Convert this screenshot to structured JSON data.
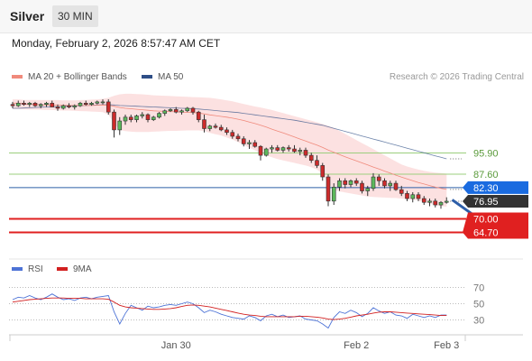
{
  "header": {
    "title": "Silver",
    "interval": "30 MIN",
    "datetime": "Monday, February 2, 2026 8:57:47 AM CET"
  },
  "legend": {
    "ma20": "MA 20 + Bollinger Bands",
    "ma50": "MA 50",
    "credit": "Research © 2026 Trading Central",
    "rsi": "RSI",
    "rsi_ma": "9MA"
  },
  "colors": {
    "bull": "#5cb85c",
    "bear": "#cc2b2b",
    "ma20": "#f08a7c",
    "ma50": "#2e4e86",
    "rsi": "#4d73d6",
    "rsi_ma": "#d22020",
    "band": "#fcdcdc",
    "green_level": "#9bcf7d",
    "blue_level": "#2e5fa8",
    "red_level": "#e02020",
    "price_tag": "#333333",
    "blue_tag": "#1a6be0",
    "red_tag": "#e02020",
    "arrow": "#2d5ea8"
  },
  "chart_data": {
    "type": "candlestick",
    "title": "Silver",
    "interval": "30 MIN",
    "ylim": [
      56,
      122
    ],
    "x_ticks": [
      "Jan 30",
      "Feb 2",
      "Feb 3"
    ],
    "x_tick_index": [
      29,
      61,
      77
    ],
    "last_price": "76.95",
    "levels": [
      {
        "value": 95.9,
        "label": "95.90",
        "kind": "resistance"
      },
      {
        "value": 87.6,
        "label": "87.60",
        "kind": "resistance"
      },
      {
        "value": 82.3,
        "label": "82.30",
        "kind": "pivot"
      },
      {
        "value": 70.0,
        "label": "70.00",
        "kind": "support"
      },
      {
        "value": 64.7,
        "label": "64.70",
        "kind": "support"
      }
    ],
    "projection": {
      "from": [
        78,
        77.5
      ],
      "to": [
        84,
        67.5
      ]
    },
    "candles": [
      [
        115,
        116,
        113.5,
        114.5
      ],
      [
        114.5,
        116.5,
        114,
        115.5
      ],
      [
        115.5,
        116.5,
        114.5,
        115
      ],
      [
        115,
        116,
        114,
        115.5
      ],
      [
        115.5,
        116,
        114,
        114.5
      ],
      [
        114.5,
        115.5,
        113.5,
        115
      ],
      [
        115,
        116,
        114,
        115.5
      ],
      [
        115.5,
        116.5,
        114,
        114
      ],
      [
        114,
        115,
        112.5,
        113.5
      ],
      [
        113.5,
        115,
        113,
        114.5
      ],
      [
        114.5,
        115.5,
        113.5,
        114
      ],
      [
        114,
        115,
        113,
        114.5
      ],
      [
        114.5,
        116,
        114,
        115.5
      ],
      [
        115.5,
        116.5,
        114.5,
        115
      ],
      [
        115,
        116,
        114.5,
        115.5
      ],
      [
        115.5,
        116.5,
        115,
        116
      ],
      [
        116,
        117,
        115,
        116
      ],
      [
        116,
        117,
        111,
        112
      ],
      [
        112,
        113,
        102,
        105
      ],
      [
        105,
        110,
        103,
        108.5
      ],
      [
        108.5,
        111,
        107,
        110
      ],
      [
        110,
        111,
        108,
        109
      ],
      [
        109,
        111,
        108,
        110.5
      ],
      [
        110.5,
        112,
        109.5,
        111
      ],
      [
        111,
        111.5,
        108,
        109
      ],
      [
        109,
        110.5,
        108.5,
        110
      ],
      [
        110,
        112,
        109.5,
        111.5
      ],
      [
        111.5,
        113,
        110.5,
        112.5
      ],
      [
        112.5,
        113.5,
        112,
        113
      ],
      [
        113,
        114,
        111.5,
        112
      ],
      [
        112,
        113,
        111,
        112.5
      ],
      [
        112.5,
        114,
        112,
        113.5
      ],
      [
        113.5,
        114,
        111,
        112
      ],
      [
        112,
        112.5,
        108,
        109
      ],
      [
        109,
        111,
        104,
        105.5
      ],
      [
        105.5,
        107,
        104.5,
        106.5
      ],
      [
        106.5,
        107.5,
        105.5,
        106
      ],
      [
        106,
        107,
        104.5,
        105
      ],
      [
        105,
        106,
        103,
        104
      ],
      [
        104,
        105,
        101.5,
        102.5
      ],
      [
        102.5,
        103.5,
        100.5,
        101.5
      ],
      [
        101.5,
        102.5,
        98.5,
        99.5
      ],
      [
        99.5,
        101,
        97.5,
        100
      ],
      [
        100,
        101,
        98,
        98.5
      ],
      [
        98.5,
        99,
        93,
        95
      ],
      [
        95,
        98,
        94.5,
        97.5
      ],
      [
        97.5,
        99,
        96,
        98
      ],
      [
        98,
        99,
        96.5,
        97
      ],
      [
        97,
        98.5,
        96,
        98
      ],
      [
        98,
        99,
        96.5,
        97.5
      ],
      [
        97.5,
        99,
        96,
        96.5
      ],
      [
        96.5,
        98,
        95,
        97
      ],
      [
        97,
        98,
        94,
        95
      ],
      [
        95,
        96,
        92,
        93
      ],
      [
        93,
        95,
        90,
        91
      ],
      [
        91,
        92,
        85,
        86.5
      ],
      [
        86.5,
        87.5,
        75,
        77
      ],
      [
        77,
        84,
        75.5,
        82.5
      ],
      [
        82.5,
        86,
        81,
        85
      ],
      [
        85,
        86,
        82,
        83.5
      ],
      [
        83.5,
        85.5,
        82.5,
        85
      ],
      [
        85,
        86,
        83,
        84
      ],
      [
        84,
        85,
        80,
        81
      ],
      [
        81,
        83,
        79,
        82
      ],
      [
        82,
        88,
        81,
        86.5
      ],
      [
        86.5,
        87.5,
        83,
        85
      ],
      [
        85,
        86,
        82,
        83
      ],
      [
        83,
        85,
        81,
        84
      ],
      [
        84,
        85,
        81,
        81.5
      ],
      [
        81.5,
        83,
        79,
        80
      ],
      [
        80,
        81,
        77,
        78
      ],
      [
        78,
        80.5,
        76.5,
        79.5
      ],
      [
        79.5,
        80.5,
        77,
        78
      ],
      [
        78,
        79,
        75.5,
        76.5
      ],
      [
        76.5,
        78,
        75,
        77
      ],
      [
        77,
        78,
        74.5,
        75.5
      ],
      [
        75.5,
        77,
        74,
        76.5
      ],
      [
        76.5,
        78.5,
        76,
        76.95
      ]
    ],
    "ma20": [
      115.5,
      115.5,
      115.2,
      115,
      115,
      114.9,
      114.8,
      114.8,
      114.7,
      114.7,
      114.6,
      114.6,
      114.6,
      114.6,
      114.6,
      114.7,
      114.8,
      114.7,
      114.3,
      113.8,
      113.5,
      113.3,
      113.1,
      112.9,
      112.7,
      112.5,
      112.4,
      112.3,
      112.2,
      112.1,
      112,
      111.9,
      111.8,
      111.6,
      111.3,
      110.9,
      110.6,
      110.3,
      110,
      109.6,
      109.2,
      108.7,
      108.1,
      107.5,
      106.8,
      106.1,
      105.3,
      104.5,
      103.8,
      103,
      102.2,
      101.4,
      100.6,
      99.8,
      99,
      98.1,
      97.1,
      96.2,
      95.3,
      94.4,
      93.6,
      92.8,
      92,
      91.2,
      90.4,
      89.6,
      88.8,
      88,
      87.2,
      86.4,
      85.7,
      85,
      84.3,
      83.7,
      83.1,
      82.5,
      82,
      81.6
    ],
    "bb_upper": [
      117,
      117,
      116.8,
      116.8,
      116.8,
      116.7,
      116.7,
      116.7,
      116.7,
      116.6,
      116.6,
      116.6,
      116.7,
      116.8,
      116.9,
      117,
      117.2,
      117.6,
      118.4,
      119,
      119.2,
      119.2,
      119.1,
      119,
      118.8,
      118.6,
      118.5,
      118.4,
      118.3,
      118.2,
      118.1,
      118,
      117.9,
      117.8,
      117.7,
      117.6,
      117.3,
      117,
      116.6,
      116.2,
      115.7,
      115.2,
      114.7,
      114.2,
      113.8,
      113.3,
      112.8,
      112.2,
      111.6,
      111,
      110.4,
      109.8,
      109.2,
      108.6,
      108,
      107.3,
      106.6,
      105.8,
      104.6,
      103.4,
      102.2,
      101,
      99.8,
      98.6,
      97.4,
      96.2,
      95,
      93.8,
      92.6,
      91.4,
      90.6,
      90,
      89.4,
      88.9,
      88.5,
      88.2,
      88,
      87.8
    ],
    "bb_lower": [
      113.2,
      113.2,
      113.1,
      113,
      113,
      112.9,
      112.8,
      112.8,
      112.7,
      112.6,
      112.6,
      112.5,
      112.4,
      112.3,
      112.2,
      112.1,
      112,
      111,
      107.5,
      105,
      104.5,
      104.3,
      104.2,
      104.2,
      104.2,
      104.3,
      104.4,
      104.5,
      104.6,
      104.6,
      104.7,
      104.8,
      104.8,
      104.8,
      104.5,
      103.8,
      103.3,
      102.8,
      102,
      101.2,
      100.2,
      99,
      98,
      97,
      95.8,
      95,
      94.2,
      93.5,
      93,
      92.5,
      92,
      91.5,
      91,
      90.3,
      89.4,
      87.8,
      84,
      81.5,
      80.8,
      80.4,
      80,
      79.6,
      79.2,
      78.8,
      78.6,
      78.5,
      78.4,
      78.3,
      78.2,
      78,
      77.8,
      77.6,
      77.2,
      76.6,
      76,
      75.4,
      75,
      74.8
    ],
    "ma50": [
      113.5,
      113.5,
      113.6,
      113.7,
      113.8,
      113.9,
      114,
      114.1,
      114.1,
      114.2,
      114.3,
      114.4,
      114.5,
      114.6,
      114.7,
      114.8,
      114.9,
      114.9,
      114.8,
      114.6,
      114.5,
      114.4,
      114.3,
      114.2,
      114.1,
      114,
      113.9,
      113.8,
      113.7,
      113.6,
      113.5,
      113.4,
      113.3,
      113.2,
      113,
      112.8,
      112.6,
      112.4,
      112.2,
      112,
      111.8,
      111.5,
      111.2,
      110.9,
      110.6,
      110.3,
      110,
      109.7,
      109.4,
      109.1,
      108.8,
      108.4,
      108,
      107.6,
      107.2,
      106.8,
      106.2,
      105.6,
      105,
      104.4,
      103.8,
      103.2,
      102.6,
      102,
      101.4,
      100.8,
      100.2,
      99.6,
      99,
      98.4,
      97.8,
      97.2,
      96.6,
      96,
      95.4,
      94.8,
      94.2,
      93.6
    ],
    "rsi": {
      "ylim": [
        15,
        85
      ],
      "levels": [
        30,
        50,
        70
      ],
      "rsi": [
        55,
        58,
        57,
        60,
        57,
        55,
        58,
        62,
        58,
        55,
        56,
        54,
        57,
        58,
        56,
        58,
        59,
        60,
        40,
        25,
        38,
        48,
        45,
        42,
        47,
        45,
        46,
        48,
        49,
        48,
        50,
        52,
        50,
        45,
        39,
        42,
        40,
        37,
        35,
        33,
        32,
        31,
        35,
        33,
        29,
        35,
        37,
        34,
        36,
        33,
        34,
        35,
        31,
        30,
        29,
        25,
        20,
        33,
        40,
        38,
        42,
        39,
        34,
        38,
        45,
        41,
        38,
        40,
        36,
        35,
        32,
        37,
        35,
        33,
        35,
        33,
        36,
        36
      ],
      "ma": [
        52,
        53,
        54,
        55,
        55.5,
        56,
        56.5,
        57,
        57,
        57,
        56.5,
        56.5,
        56.5,
        56,
        56,
        56,
        56,
        55.5,
        52,
        48,
        46,
        45,
        44.5,
        44,
        43.5,
        43,
        43,
        43.5,
        44,
        45,
        46.5,
        48,
        48.5,
        48,
        47,
        46,
        44.5,
        43,
        41.5,
        40,
        38.5,
        37,
        36,
        35.5,
        34.5,
        34,
        34,
        34,
        34,
        34,
        34,
        34.5,
        34.5,
        34,
        33.5,
        32.5,
        31,
        30.5,
        31,
        32,
        33.5,
        35,
        36,
        37,
        38.5,
        39.5,
        40,
        40,
        39.5,
        39,
        38.5,
        38,
        37.5,
        37,
        36.5,
        36,
        35.5,
        35.5
      ]
    }
  }
}
